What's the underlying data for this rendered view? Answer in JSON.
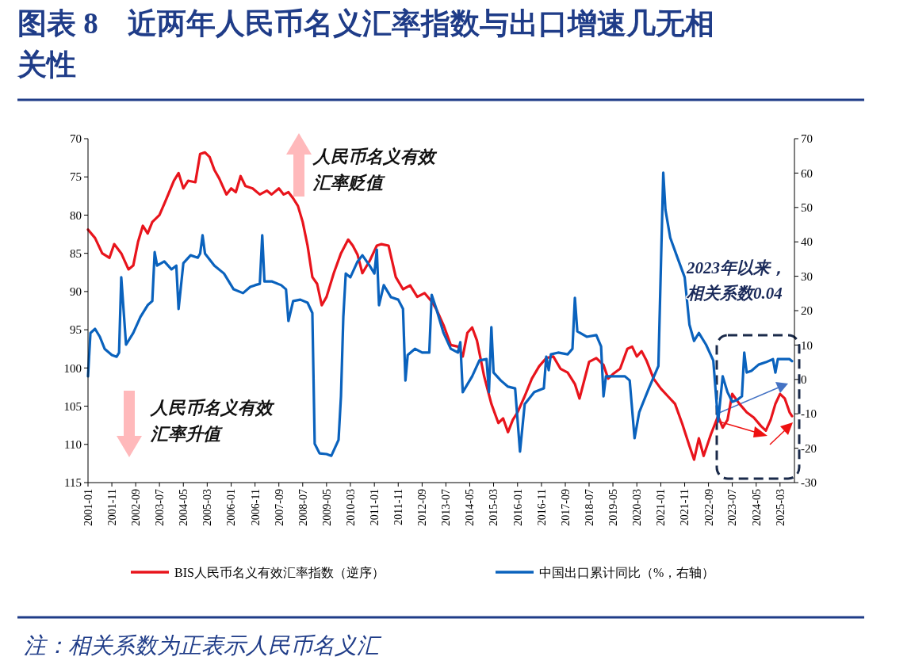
{
  "chart_data": {
    "type": "line",
    "title": "图表 8　近两年人民币名义汇率指数与出口增速几无相关性",
    "xlim": [
      "2001-01",
      "2025-09"
    ],
    "xticks": [
      "2001-01",
      "2001-11",
      "2002-09",
      "2003-07",
      "2004-05",
      "2005-03",
      "2006-01",
      "2006-11",
      "2007-09",
      "2008-07",
      "2009-05",
      "2010-03",
      "2011-01",
      "2011-11",
      "2012-09",
      "2013-07",
      "2014-05",
      "2015-03",
      "2016-01",
      "2016-11",
      "2017-09",
      "2018-07",
      "2019-05",
      "2020-03",
      "2021-01",
      "2021-11",
      "2022-09",
      "2023-07",
      "2024-05",
      "2025-03"
    ],
    "ylim": [
      115,
      70
    ],
    "yticks": [
      70,
      75,
      80,
      85,
      90,
      95,
      100,
      105,
      110,
      115
    ],
    "y2lim": [
      -30,
      70
    ],
    "y2ticks": [
      -30,
      -20,
      -10,
      0,
      10,
      20,
      30,
      40,
      50,
      60,
      70
    ],
    "legend": "bottom",
    "series": [
      {
        "name": "BIS人民币名义有效汇率指数（逆序）",
        "color": "#e8141c",
        "x": [
          "2001-01",
          "2001-04",
          "2001-07",
          "2001-10",
          "2001-12",
          "2002-03",
          "2002-06",
          "2002-08",
          "2002-10",
          "2002-12",
          "2003-02",
          "2003-04",
          "2003-07",
          "2003-10",
          "2004-01",
          "2004-03",
          "2004-05",
          "2004-07",
          "2004-10",
          "2004-12",
          "2005-02",
          "2005-04",
          "2005-06",
          "2005-08",
          "2005-11",
          "2006-01",
          "2006-03",
          "2006-05",
          "2006-07",
          "2006-10",
          "2007-01",
          "2007-04",
          "2007-06",
          "2007-09",
          "2007-11",
          "2008-01",
          "2008-03",
          "2008-05",
          "2008-07",
          "2008-09",
          "2008-11",
          "2009-01",
          "2009-03",
          "2009-05",
          "2009-08",
          "2009-11",
          "2010-02",
          "2010-04",
          "2010-06",
          "2010-08",
          "2010-11",
          "2011-02",
          "2011-04",
          "2011-07",
          "2011-10",
          "2012-01",
          "2012-04",
          "2012-07",
          "2012-10",
          "2013-01",
          "2013-03",
          "2013-06",
          "2013-09",
          "2013-12",
          "2014-02",
          "2014-04",
          "2014-06",
          "2014-08",
          "2014-11",
          "2015-02",
          "2015-05",
          "2015-07",
          "2015-09",
          "2015-11",
          "2016-01",
          "2016-04",
          "2016-07",
          "2016-10",
          "2017-01",
          "2017-04",
          "2017-07",
          "2017-10",
          "2018-01",
          "2018-03",
          "2018-05",
          "2018-07",
          "2018-10",
          "2019-01",
          "2019-03",
          "2019-05",
          "2019-08",
          "2019-11",
          "2020-01",
          "2020-03",
          "2020-05",
          "2020-07",
          "2020-10",
          "2021-01",
          "2021-04",
          "2021-07",
          "2021-10",
          "2022-01",
          "2022-03",
          "2022-05",
          "2022-07",
          "2022-10",
          "2023-01",
          "2023-03",
          "2023-05",
          "2023-07",
          "2023-10",
          "2024-01",
          "2024-04",
          "2024-07",
          "2024-09",
          "2024-11",
          "2025-01",
          "2025-03",
          "2025-05",
          "2025-07",
          "2025-08"
        ],
        "values": [
          81.9,
          83,
          85,
          85.6,
          83.8,
          85,
          87.1,
          86.6,
          83.5,
          81.4,
          82.4,
          80.9,
          80,
          77.8,
          75.5,
          74.5,
          76.5,
          75.5,
          75.7,
          72,
          71.8,
          72.4,
          74.1,
          75.2,
          77.3,
          76.5,
          77,
          74.9,
          76.2,
          76.5,
          77.3,
          76.8,
          77.3,
          76.5,
          77.3,
          77,
          77.8,
          78.8,
          80.9,
          84,
          88.1,
          89,
          91.8,
          90.7,
          87.6,
          85,
          83.2,
          84,
          85.2,
          87.6,
          86,
          84,
          83.8,
          84,
          88.1,
          89.7,
          89.2,
          90.7,
          90.2,
          91.3,
          92.3,
          94.4,
          97,
          97.2,
          98.5,
          95.4,
          94.7,
          96.4,
          101.1,
          104.7,
          107.2,
          106.6,
          108.4,
          106.8,
          105.8,
          103.7,
          101.4,
          99.8,
          98.7,
          98.5,
          100.1,
          100.6,
          102.1,
          104,
          101.6,
          99.2,
          98.7,
          99.6,
          101.4,
          100.8,
          100.1,
          97.5,
          97.2,
          98.5,
          97.8,
          99,
          101.4,
          102.7,
          103.7,
          104.7,
          107.3,
          110.2,
          112,
          109.2,
          111.5,
          108.7,
          106.3,
          107.8,
          106.8,
          103.4,
          104.7,
          105.8,
          106.5,
          107.6,
          108.2,
          106.8,
          104.7,
          103.4,
          104,
          105.8,
          106.3
        ]
      },
      {
        "name": "中国出口累计同比（%，右轴）",
        "color": "#0a62bd",
        "axis": "y2",
        "x": [
          "2001-01",
          "2001-02",
          "2001-04",
          "2001-06",
          "2001-08",
          "2001-11",
          "2002-01",
          "2002-02",
          "2002-03",
          "2002-05",
          "2002-08",
          "2002-11",
          "2003-02",
          "2003-04",
          "2003-05",
          "2003-06",
          "2003-09",
          "2003-12",
          "2004-02",
          "2004-03",
          "2004-05",
          "2004-08",
          "2004-11",
          "2004-12",
          "2005-01",
          "2005-02",
          "2005-06",
          "2005-10",
          "2006-02",
          "2006-06",
          "2006-09",
          "2006-11",
          "2007-01",
          "2007-02",
          "2007-03",
          "2007-06",
          "2007-10",
          "2007-12",
          "2008-01",
          "2008-03",
          "2008-06",
          "2008-09",
          "2008-11",
          "2008-12",
          "2009-02",
          "2009-05",
          "2009-07",
          "2009-10",
          "2009-11",
          "2009-12",
          "2010-01",
          "2010-03",
          "2010-06",
          "2010-08",
          "2010-11",
          "2011-01",
          "2011-02",
          "2011-03",
          "2011-05",
          "2011-08",
          "2011-11",
          "2012-01",
          "2012-02",
          "2012-03",
          "2012-06",
          "2012-09",
          "2012-12",
          "2013-01",
          "2013-03",
          "2013-06",
          "2013-09",
          "2013-12",
          "2014-01",
          "2014-02",
          "2014-06",
          "2014-09",
          "2014-12",
          "2015-01",
          "2015-02",
          "2015-03",
          "2015-06",
          "2015-09",
          "2015-12",
          "2016-02",
          "2016-04",
          "2016-08",
          "2016-12",
          "2017-01",
          "2017-02",
          "2017-03",
          "2017-06",
          "2017-10",
          "2017-12",
          "2018-01",
          "2018-02",
          "2018-06",
          "2018-10",
          "2018-12",
          "2019-01",
          "2019-02",
          "2019-06",
          "2019-10",
          "2019-12",
          "2020-02",
          "2020-04",
          "2020-08",
          "2020-12",
          "2021-02",
          "2021-03",
          "2021-05",
          "2021-08",
          "2021-11",
          "2022-01",
          "2022-03",
          "2022-05",
          "2022-08",
          "2022-11",
          "2023-01",
          "2023-03",
          "2023-05",
          "2023-07",
          "2023-09",
          "2023-11",
          "2023-12",
          "2024-01",
          "2024-03",
          "2024-06",
          "2024-09",
          "2024-12",
          "2025-01",
          "2025-02",
          "2025-05",
          "2025-07",
          "2025-08"
        ],
        "values": [
          0.9,
          13.5,
          14.7,
          12.4,
          8.9,
          7.1,
          6.6,
          7.8,
          29.7,
          10.1,
          13.5,
          18.2,
          21.6,
          22.8,
          37,
          33.1,
          34.3,
          32,
          33.1,
          20.5,
          33.8,
          36.1,
          35.4,
          36.6,
          41.9,
          36.6,
          33.1,
          30.8,
          26.2,
          25.1,
          26.9,
          27.4,
          27.8,
          41.9,
          28.5,
          28.5,
          27.4,
          26.2,
          17,
          22.8,
          23.2,
          22.3,
          19.3,
          -18.7,
          -21.5,
          -21.7,
          -22.2,
          -17.6,
          -4.9,
          18.2,
          30.8,
          29.7,
          34.3,
          36.1,
          33.1,
          30.8,
          37.7,
          21.6,
          27.4,
          23.9,
          23.2,
          20.5,
          -0.3,
          7.1,
          8.9,
          7.8,
          7.8,
          24.6,
          20.5,
          13.5,
          8.9,
          7.8,
          10.8,
          -3.7,
          0.9,
          5.5,
          5.9,
          -3.7,
          15.2,
          2,
          -0.3,
          -2.1,
          -2.6,
          -21,
          -7.2,
          -3.7,
          -2.6,
          6.6,
          2.7,
          7.3,
          7.8,
          7.3,
          8.9,
          23.7,
          14,
          12.4,
          12.9,
          9.6,
          -4.9,
          0.9,
          0.9,
          0.9,
          -0.3,
          -17.1,
          -9.5,
          -2.6,
          3.9,
          60.1,
          49.3,
          41.2,
          35.4,
          29.7,
          15.9,
          11.2,
          13.5,
          10.1,
          5.5,
          -12.3,
          0.9,
          -3.7,
          -6.5,
          -6,
          -4.9,
          7.8,
          2,
          2.5,
          4.3,
          5,
          5.9,
          2,
          5.9,
          5.9,
          5.9,
          5.3
        ]
      }
    ],
    "annotations": [
      "人民币名义有效汇率贬值",
      "人民币名义有效汇率升值",
      "2023年以来，相关系数0.04",
      "注：相关系数为正表示人民币名义汇"
    ]
  }
}
